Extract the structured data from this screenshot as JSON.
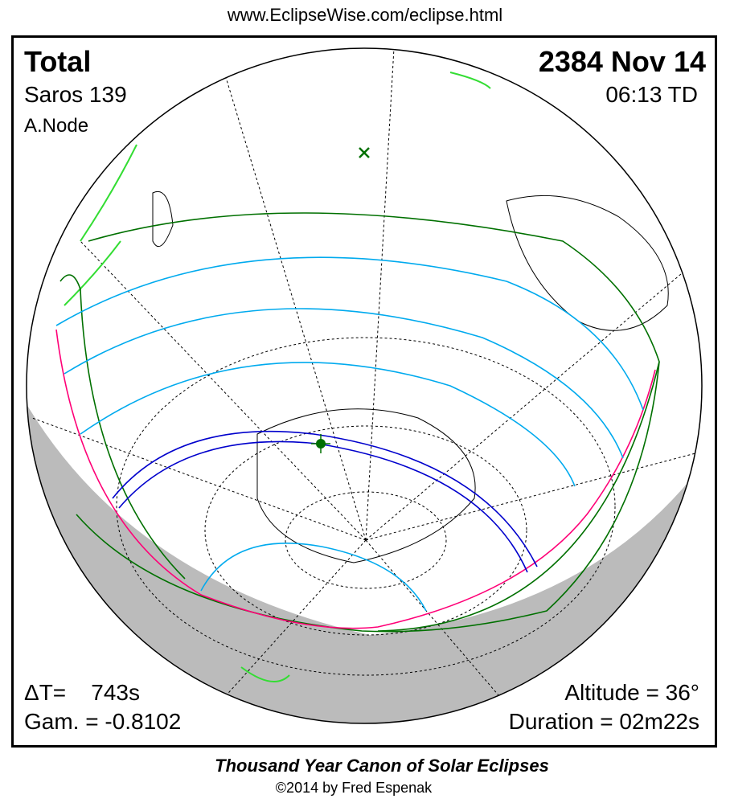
{
  "header": {
    "url": "www.EclipseWise.com/eclipse.html"
  },
  "eclipse": {
    "type": "Total",
    "saros": "Saros 139",
    "node": "A.Node",
    "date": "2384 Nov 14",
    "time": "06:13 TD"
  },
  "stats": {
    "delta_t": "ΔT=    743s",
    "gamma": "Gam. = -0.8102",
    "altitude": "Altitude = 36°",
    "duration": "Duration = 02m22s"
  },
  "footer": {
    "title": "Thousand Year Canon of Solar Eclipses",
    "copyright": "©2014 by Fred Espenak"
  },
  "colors": {
    "central_path": "#0000cc",
    "penumbral_limits": "#007000",
    "rise_set": "#ff0077",
    "magnitude": "#00aaee",
    "land": "#33dd33",
    "night": "#bbbbbb"
  }
}
